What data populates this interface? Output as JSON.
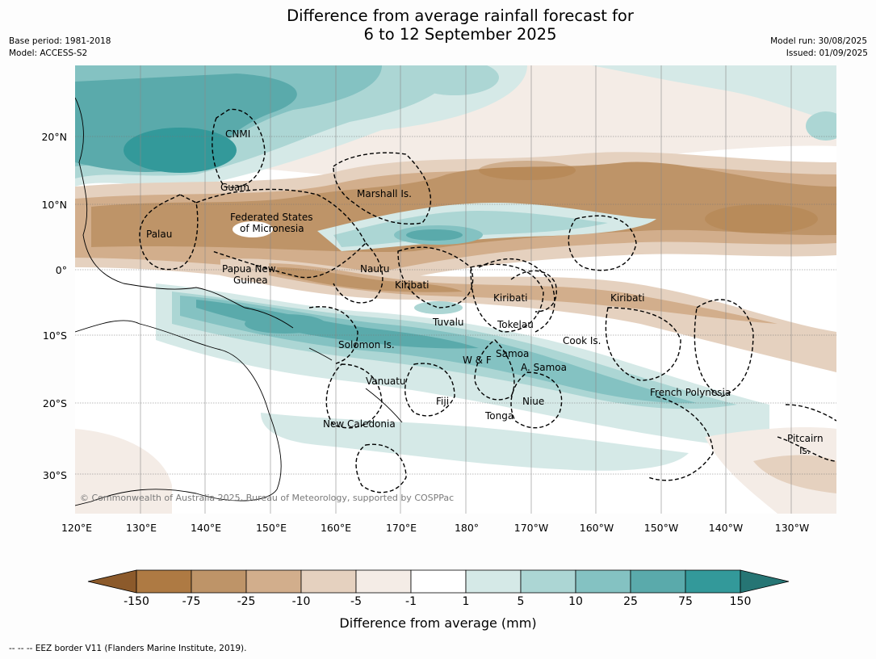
{
  "title_line1": "Difference from average rainfall forecast for",
  "title_line2": "6 to 12 September 2025",
  "base_period": "Base period: 1981-2018",
  "model": "Model: ACCESS-S2",
  "model_run": "Model run: 30/08/2025",
  "issued": "Issued: 01/09/2025",
  "copyright": "© Commonwealth of Australia 2025, Bureau of Meteorology, supported by COSPPac",
  "lon_labels": [
    "120°E",
    "130°E",
    "140°E",
    "150°E",
    "160°E",
    "170°E",
    "180°",
    "170°W",
    "160°W",
    "150°W",
    "140°W",
    "130°W"
  ],
  "lat_labels": [
    "20°N",
    "10°N",
    "0°",
    "10°S",
    "20°S",
    "30°S"
  ],
  "places": {
    "cnmi": "CNMI",
    "guam": "Guam",
    "marshall": "Marshall Is.",
    "fsm_1": "Federated States",
    "fsm_2": "of Micronesia",
    "palau": "Palau",
    "png_1": "Papua New",
    "png_2": "Guinea",
    "nauru": "Nauru",
    "kiribati_w": "Kiribati",
    "kiribati_c": "Kiribati",
    "kiribati_e": "Kiribati",
    "tuvalu": "Tuvalu",
    "tokelau": "Tokelau",
    "cook": "Cook Is.",
    "solomon": "Solomon Is.",
    "samoa": "Samoa",
    "wf": "W & F",
    "asamoa": "A. Samoa",
    "vanuatu": "Vanuatu",
    "fiji": "Fiji",
    "niue": "Niue",
    "tonga": "Tonga",
    "frenchpoly": "French Polynesia",
    "newcal": "New Caledonia",
    "pitcairn_1": "Pitcairn",
    "pitcairn_2": "Is."
  },
  "colorbar": {
    "title": "Difference from average (mm)",
    "ticks": [
      "-150",
      "-75",
      "-25",
      "-10",
      "-5",
      "-1",
      "1",
      "5",
      "10",
      "25",
      "75",
      "150"
    ],
    "colors": [
      "#8c5a2b",
      "#ae7a43",
      "#be9468",
      "#d2ae8c",
      "#e5d1bf",
      "#f4ece6",
      "#ffffff",
      "#d5e9e7",
      "#acd6d4",
      "#84c2c2",
      "#5aaaab",
      "#33999a",
      "#267574"
    ]
  },
  "footnote": "--  --  -- EEZ border V11 (Flanders Marine Institute, 2019)."
}
